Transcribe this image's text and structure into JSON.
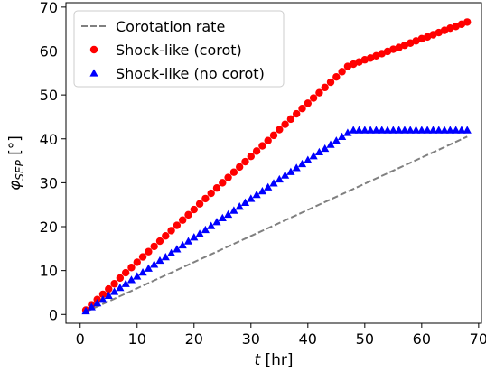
{
  "chart_data": {
    "type": "scatter",
    "title": "",
    "xlabel_var": "t",
    "xlabel_unit": " [hr]",
    "ylabel_var": "φ",
    "ylabel_sub": "SEP",
    "ylabel_unit": " [°]",
    "xlim": [
      -2.5,
      70.5
    ],
    "ylim": [
      -2,
      71
    ],
    "xticks": [
      0,
      10,
      20,
      30,
      40,
      50,
      60,
      70
    ],
    "yticks": [
      0,
      10,
      20,
      30,
      40,
      50,
      60,
      70
    ],
    "grid": false,
    "legend_placement": "top-left",
    "series": [
      {
        "name": "Corotation rate",
        "kind": "line",
        "style": "dashed",
        "color": "#808080",
        "x": [
          1,
          68
        ],
        "y": [
          0.6,
          40.5
        ]
      },
      {
        "name": "Shock-like (corot)",
        "kind": "scatter",
        "marker": "circle",
        "color": "#ff0000",
        "x": [
          1,
          2,
          3,
          4,
          5,
          6,
          7,
          8,
          9,
          10,
          11,
          12,
          13,
          14,
          15,
          16,
          17,
          18,
          19,
          20,
          21,
          22,
          23,
          24,
          25,
          26,
          27,
          28,
          29,
          30,
          31,
          32,
          33,
          34,
          35,
          36,
          37,
          38,
          39,
          40,
          41,
          42,
          43,
          44,
          45,
          46,
          47,
          48,
          49,
          50,
          51,
          52,
          53,
          54,
          55,
          56,
          57,
          58,
          59,
          60,
          61,
          62,
          63,
          64,
          65,
          66,
          67,
          68
        ],
        "y": [
          1.0,
          2.2,
          3.4,
          4.6,
          5.8,
          7.0,
          8.3,
          9.5,
          10.7,
          11.9,
          13.1,
          14.3,
          15.5,
          16.7,
          17.9,
          19.1,
          20.3,
          21.5,
          22.7,
          23.9,
          25.2,
          26.4,
          27.6,
          28.8,
          30.0,
          31.2,
          32.4,
          33.6,
          34.8,
          36.0,
          37.2,
          38.4,
          39.6,
          40.8,
          42.1,
          43.3,
          44.5,
          45.7,
          46.9,
          48.1,
          49.3,
          50.5,
          51.7,
          52.9,
          54.1,
          55.3,
          56.5,
          57.0,
          57.5,
          58.0,
          58.4,
          58.9,
          59.4,
          59.9,
          60.4,
          60.8,
          61.3,
          61.8,
          62.3,
          62.8,
          63.2,
          63.7,
          64.2,
          64.7,
          65.2,
          65.6,
          66.1,
          66.6
        ]
      },
      {
        "name": "Shock-like (no corot)",
        "kind": "scatter",
        "marker": "triangle",
        "color": "#0000ff",
        "x": [
          1,
          2,
          3,
          4,
          5,
          6,
          7,
          8,
          9,
          10,
          11,
          12,
          13,
          14,
          15,
          16,
          17,
          18,
          19,
          20,
          21,
          22,
          23,
          24,
          25,
          26,
          27,
          28,
          29,
          30,
          31,
          32,
          33,
          34,
          35,
          36,
          37,
          38,
          39,
          40,
          41,
          42,
          43,
          44,
          45,
          46,
          47,
          48,
          49,
          50,
          51,
          52,
          53,
          54,
          55,
          56,
          57,
          58,
          59,
          60,
          61,
          62,
          63,
          64,
          65,
          66,
          67,
          68
        ],
        "y": [
          0.8,
          1.7,
          2.6,
          3.4,
          4.3,
          5.2,
          6.1,
          7.0,
          7.9,
          8.7,
          9.6,
          10.5,
          11.4,
          12.3,
          13.1,
          14.0,
          14.9,
          15.8,
          16.7,
          17.6,
          18.4,
          19.3,
          20.2,
          21.1,
          22.0,
          22.8,
          23.7,
          24.6,
          25.5,
          26.4,
          27.3,
          28.1,
          29.0,
          29.9,
          30.8,
          31.7,
          32.5,
          33.4,
          34.3,
          35.2,
          36.1,
          37.0,
          37.8,
          38.7,
          39.6,
          40.5,
          41.4,
          42.0,
          42.0,
          42.0,
          42.0,
          42.0,
          42.0,
          42.0,
          42.0,
          42.0,
          42.0,
          42.0,
          42.0,
          42.0,
          42.0,
          42.0,
          42.0,
          42.0,
          42.0,
          42.0,
          42.0,
          42.0
        ]
      }
    ]
  }
}
